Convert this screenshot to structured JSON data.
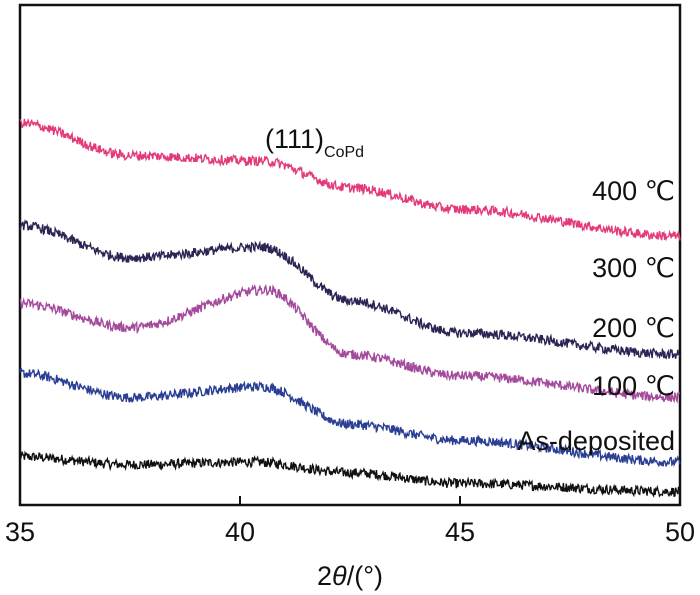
{
  "chart_data": {
    "type": "line",
    "title": "",
    "xlabel_prefix": "2",
    "xlabel_theta": "θ",
    "xlabel_suffix": "/(°)",
    "ylabel": "",
    "xlim": [
      35,
      50
    ],
    "x_ticks": [
      35,
      40,
      45,
      50
    ],
    "x_tick_labels": [
      "35",
      "40",
      "45",
      "50"
    ],
    "y_ticks": [],
    "grid": false,
    "legend": "none",
    "peak_annotation": {
      "main": "(111)",
      "subscript": "CoPd",
      "x": 40.6
    },
    "peak_x": 40.5,
    "series": [
      {
        "name": "As-deposited",
        "color": "#111111",
        "x": [
          35,
          37.5,
          40.3,
          42.5,
          45,
          50
        ],
        "y": [
          0.09,
          0.075,
          0.08,
          0.06,
          0.04,
          0.025
        ]
      },
      {
        "name": "100 ℃",
        "color": "#2a3f93",
        "x": [
          35,
          37.5,
          40.5,
          42.5,
          45,
          50
        ],
        "y": [
          0.245,
          0.2,
          0.22,
          0.15,
          0.12,
          0.08
        ]
      },
      {
        "name": "200 ℃",
        "color": "#a44a9c",
        "x": [
          35,
          37.5,
          40.6,
          42.5,
          45,
          50
        ],
        "y": [
          0.375,
          0.33,
          0.4,
          0.28,
          0.24,
          0.2
        ]
      },
      {
        "name": "300 ℃",
        "color": "#2e2454",
        "x": [
          35,
          37.5,
          40.5,
          42.5,
          45,
          50
        ],
        "y": [
          0.52,
          0.46,
          0.48,
          0.38,
          0.32,
          0.28
        ]
      },
      {
        "name": "400 ℃",
        "color": "#e33a7a",
        "x": [
          35,
          37.5,
          40.5,
          42.5,
          45,
          50
        ],
        "y": [
          0.71,
          0.65,
          0.64,
          0.59,
          0.55,
          0.5
        ]
      }
    ],
    "ylim": [
      0,
      0.93
    ]
  }
}
